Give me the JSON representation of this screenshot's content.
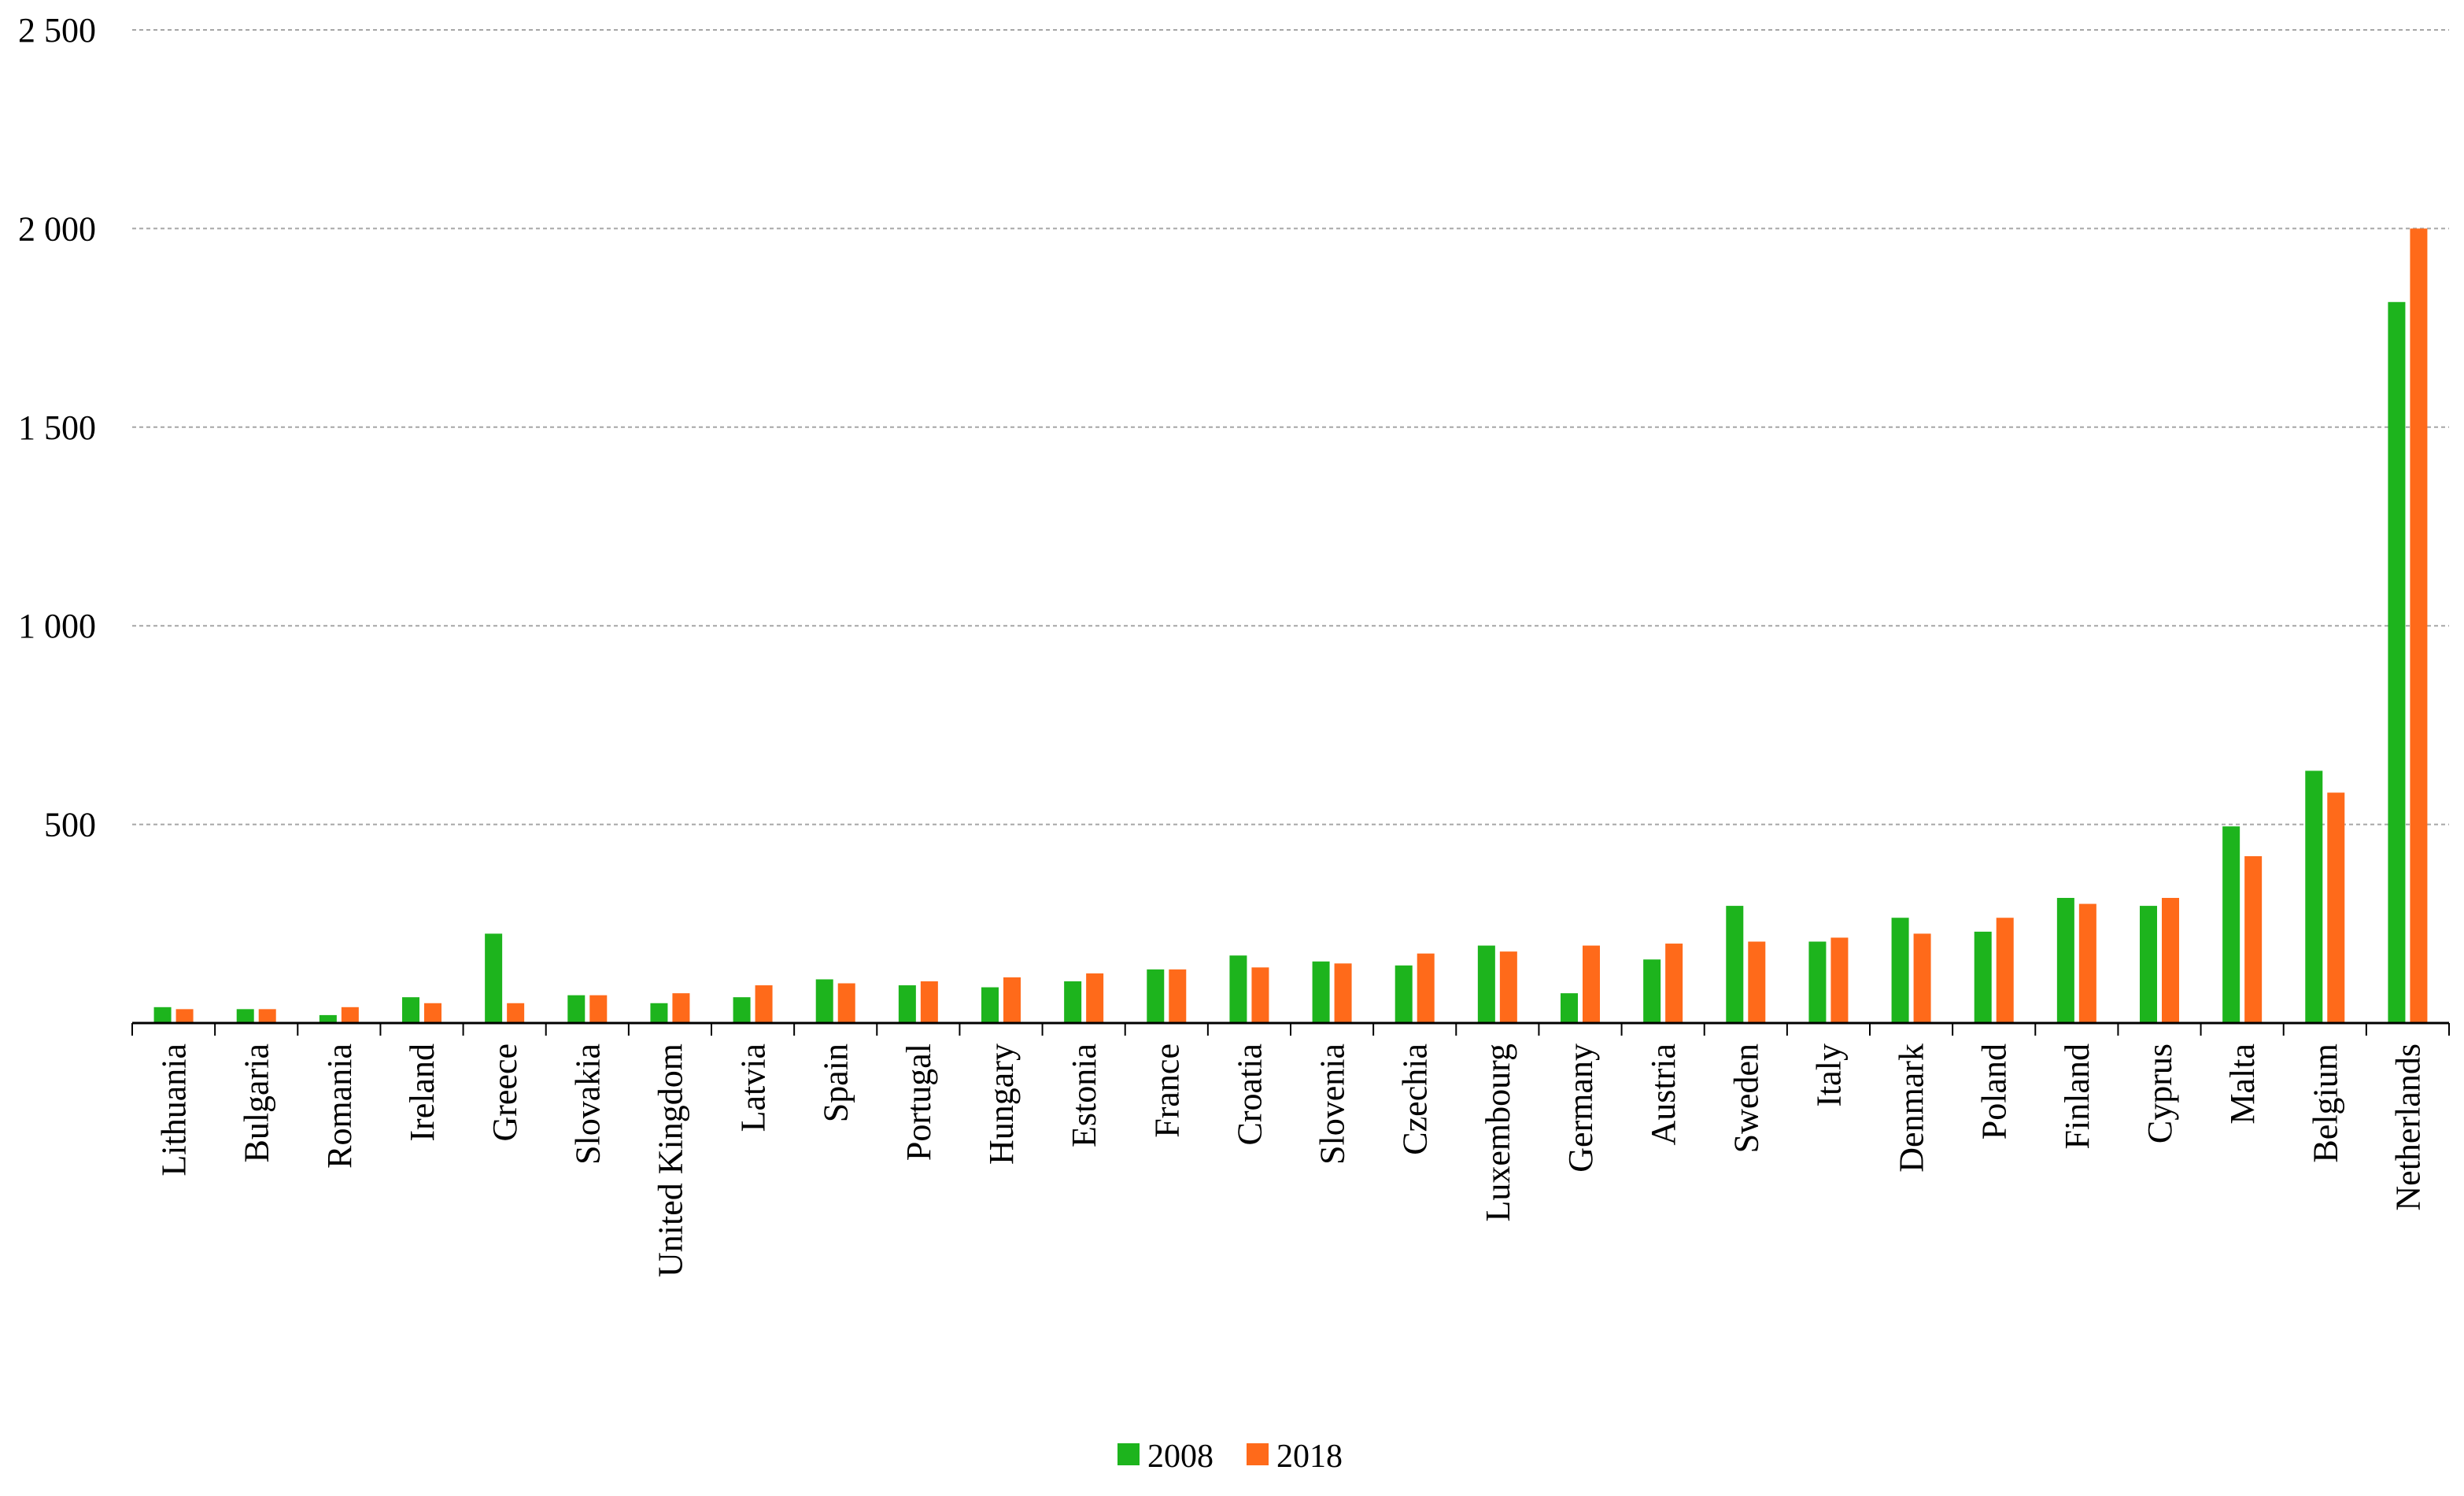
{
  "chart_data": {
    "type": "bar",
    "title": "",
    "xlabel": "",
    "ylabel": "",
    "ylim": [
      0,
      2500
    ],
    "yticks": [
      0,
      500,
      1000,
      1500,
      2000,
      2500
    ],
    "ytick_labels": [
      "",
      "500",
      "1 000",
      "1 500",
      "2 000",
      "2 500"
    ],
    "grid": true,
    "legend_position": "bottom-center",
    "categories": [
      "Lithuania",
      "Bulgaria",
      "Romania",
      "Ireland",
      "Greece",
      "Slovakia",
      "United Kingdom",
      "Latvia",
      "Spain",
      "Portugal",
      "Hungary",
      "Estonia",
      "France",
      "Croatia",
      "Slovenia",
      "Czechia",
      "Luxembourg",
      "Germany",
      "Austria",
      "Sweden",
      "Italy",
      "Denmark",
      "Poland",
      "Finland",
      "Cyprus",
      "Malta",
      "Belgium",
      "Netherlands"
    ],
    "series": [
      {
        "name": "2008",
        "color": "#1DB41D",
        "values": [
          40,
          35,
          20,
          65,
          225,
          70,
          50,
          65,
          110,
          95,
          90,
          105,
          135,
          170,
          155,
          145,
          195,
          75,
          160,
          295,
          205,
          265,
          230,
          315,
          295,
          495,
          635,
          1815
        ]
      },
      {
        "name": "2018",
        "color": "#FF6A1A",
        "values": [
          35,
          35,
          40,
          50,
          50,
          70,
          75,
          95,
          100,
          105,
          115,
          125,
          135,
          140,
          150,
          175,
          180,
          195,
          200,
          205,
          215,
          225,
          265,
          300,
          315,
          420,
          580,
          2000
        ]
      }
    ]
  }
}
